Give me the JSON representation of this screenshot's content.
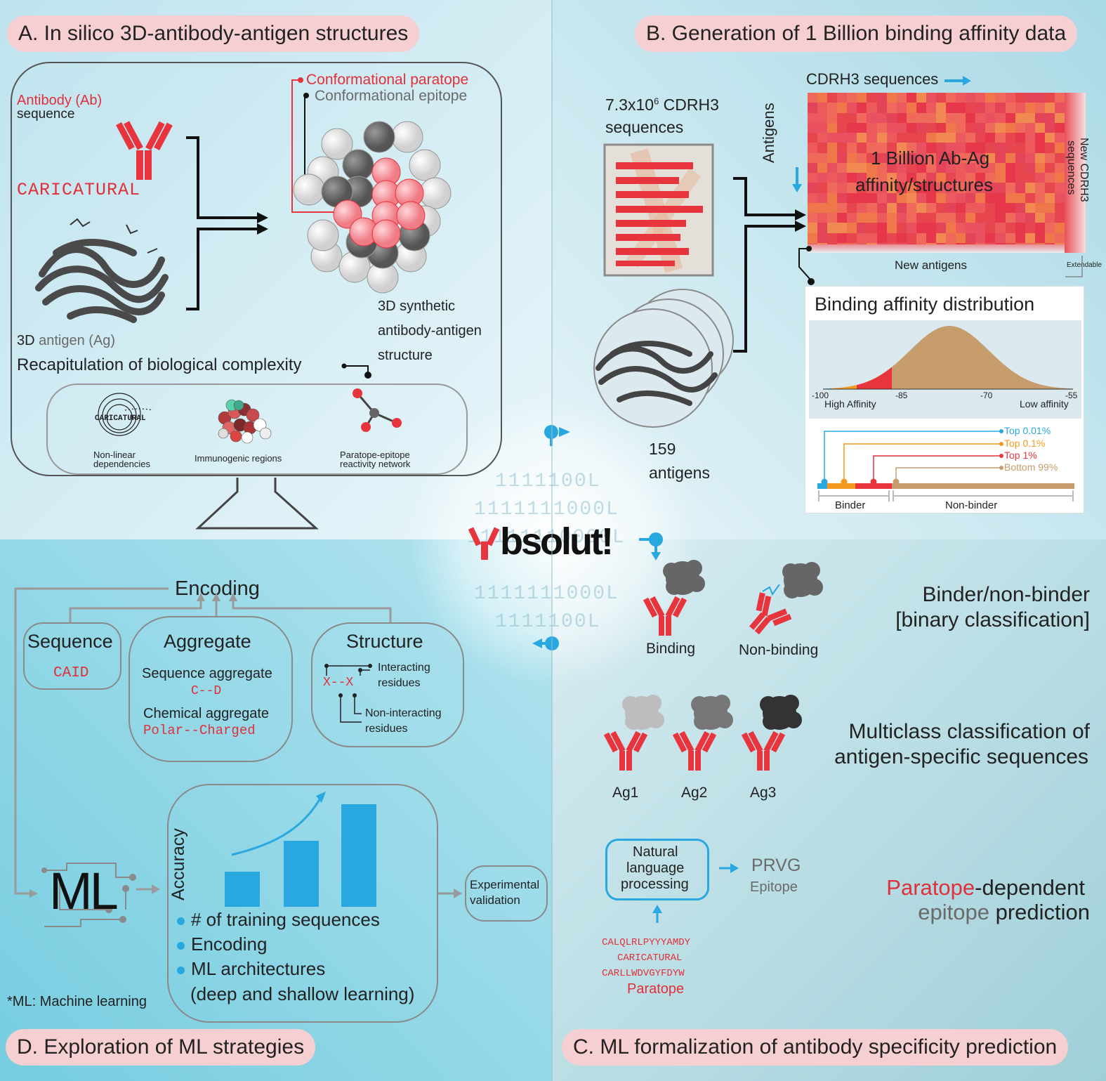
{
  "colors": {
    "accent_red": "#e8343c",
    "accent_blue": "#29a8e0",
    "gray": "#6a6a6a",
    "tan": "#c69c6d",
    "orange": "#f39a1e",
    "pink_pill": "#f6cfd2"
  },
  "panelA": {
    "title": "A. In silico 3D-antibody-antigen structures",
    "ab_label": "Antibody (Ab)",
    "ab_sub": "sequence",
    "seq": "CARICATURAL",
    "conf_paratope": "Conformational paratope",
    "conf_epitope": "Conformational epitope",
    "ag_pre": "3D ",
    "ag_mid": "antigen (Ag)",
    "struct1": "3D synthetic",
    "struct2": "antibody-antigen",
    "struct3": "structure",
    "recap": "Recapitulation of biological complexity",
    "icon_seq": "CARICATURAL",
    "icon1_l1": "Non-linear",
    "icon1_l2": "dependencies",
    "icon2": "Immunogenic regions",
    "icon3_l1": "Paratope-epitope",
    "icon3_l2": "reactivity network"
  },
  "panelB": {
    "title": "B. Generation of 1 Billion binding affinity data",
    "seq_count_pre": "7.3x10",
    "seq_count_exp": "6",
    "seq_count_post": " CDRH3",
    "seq_count_l2": "sequences",
    "heat_top": "CDRH3 sequences",
    "heat_left": "Antigens",
    "heat_l1": "1 Billion Ab-Ag",
    "heat_l2": "affinity/structures",
    "heat_right_l1": "New CDRH3",
    "heat_right_l2": "sequences",
    "heat_bottom": "New antigens",
    "extendable": "Extendable",
    "ag_count": "159",
    "ag_label": "antigens",
    "dist_title": "Binding affinity distribution",
    "ticks": [
      "-100",
      "-85",
      "-70",
      "-55"
    ],
    "high": "High Affinity",
    "low": "Low affinity",
    "tiers": [
      "Top 0.01%",
      "Top 0.1%",
      "Top 1%",
      "Bottom 99%"
    ],
    "binder": "Binder",
    "nonbinder": "Non-binder"
  },
  "center": {
    "logo_pre": "bsolut!",
    "binary_rows": [
      "1111100L",
      "1111111000L",
      "11111110000L",
      "1111111000L",
      "1111100L"
    ]
  },
  "panelC": {
    "title": "C. ML formalization of antibody specificity prediction",
    "binding": "Binding",
    "nonbinding": "Non-binding",
    "bin_l1": "Binder/non-binder",
    "bin_l2": "[binary classification]",
    "ag1": "Ag1",
    "ag2": "Ag2",
    "ag3": "Ag3",
    "multi_l1": "Multiclass classification of",
    "multi_l2": "antigen-specific sequences",
    "nlp_l1": "Natural",
    "nlp_l2": "language",
    "nlp_l3": "processing",
    "prvg": "PRVG",
    "epitope": "Epitope",
    "paratopes": [
      "CALQLRLPYYYAMDY",
      "CARICATURAL",
      "CARLLWDVGYFDYW"
    ],
    "paratope_label": "Paratope",
    "pred_red": "Paratope",
    "pred_rest": "-dependent",
    "pred_gray": "epitope",
    "pred_end": " prediction"
  },
  "panelD": {
    "title": "D. Exploration of ML strategies",
    "encoding": "Encoding",
    "sequence": "Sequence",
    "caid": "CAID",
    "aggregate": "Aggregate",
    "seq_agg": "Sequence aggregate",
    "seq_agg_ex": "C--D",
    "chem_agg": "Chemical aggregate",
    "chem_agg_ex": "Polar--Charged",
    "structure": "Structure",
    "struct_ex": "X--X",
    "interacting_l1": "Interacting",
    "interacting_l2": "residues",
    "noninteracting_l1": "Non-interacting",
    "noninteracting_l2": "residues",
    "ml": "ML",
    "accuracy": "Accuracy",
    "bullets": [
      "# of training sequences",
      "Encoding",
      "ML architectures"
    ],
    "bullet_extra": "(deep and shallow learning)",
    "exp_l1": "Experimental",
    "exp_l2": "validation",
    "footnote": "*ML: Machine learning"
  }
}
